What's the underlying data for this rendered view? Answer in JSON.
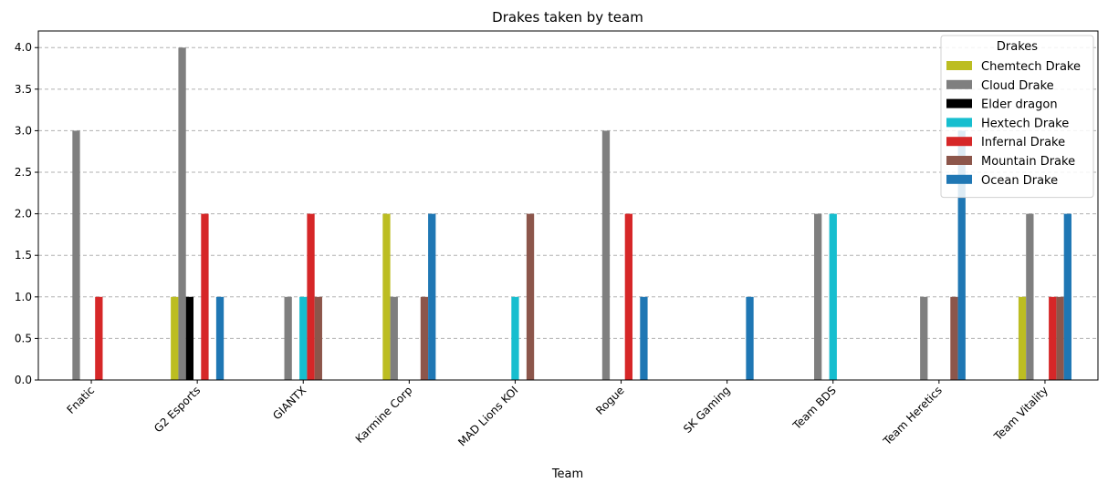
{
  "chart_data": {
    "type": "bar",
    "title": "Drakes taken by team",
    "xlabel": "Team",
    "ylabel": "",
    "ylim": [
      0,
      4.2
    ],
    "yticks": [
      0.0,
      0.5,
      1.0,
      1.5,
      2.0,
      2.5,
      3.0,
      3.5,
      4.0
    ],
    "ytick_labels": [
      "0.0",
      "0.5",
      "1.0",
      "1.5",
      "2.0",
      "2.5",
      "3.0",
      "3.5",
      "4.0"
    ],
    "grid": "y-dashed",
    "legend_title": "Drakes",
    "legend_position": "top-right",
    "categories": [
      "Fnatic",
      "G2 Esports",
      "GIANTX",
      "Karmine Corp",
      "MAD Lions KOI",
      "Rogue",
      "SK Gaming",
      "Team BDS",
      "Team Heretics",
      "Team Vitality"
    ],
    "series": [
      {
        "name": "Chemtech Drake",
        "color": "#bcbd22",
        "values": [
          0,
          1,
          0,
          2,
          0,
          0,
          0,
          0,
          0,
          1
        ]
      },
      {
        "name": "Cloud Drake",
        "color": "#7f7f7f",
        "values": [
          3,
          4,
          1,
          1,
          0,
          3,
          0,
          2,
          1,
          2
        ]
      },
      {
        "name": "Elder dragon",
        "color": "#000000",
        "values": [
          0,
          1,
          0,
          0,
          0,
          0,
          0,
          0,
          0,
          0
        ]
      },
      {
        "name": "Hextech Drake",
        "color": "#17becf",
        "values": [
          0,
          0,
          1,
          0,
          1,
          0,
          0,
          2,
          0,
          0
        ]
      },
      {
        "name": "Infernal Drake",
        "color": "#d62728",
        "values": [
          1,
          2,
          2,
          0,
          0,
          2,
          0,
          0,
          0,
          1
        ]
      },
      {
        "name": "Mountain Drake",
        "color": "#8c564b",
        "values": [
          0,
          0,
          1,
          1,
          2,
          0,
          0,
          0,
          1,
          1
        ]
      },
      {
        "name": "Ocean Drake",
        "color": "#1f77b4",
        "values": [
          0,
          1,
          0,
          2,
          0,
          1,
          1,
          0,
          3,
          2
        ]
      }
    ]
  }
}
